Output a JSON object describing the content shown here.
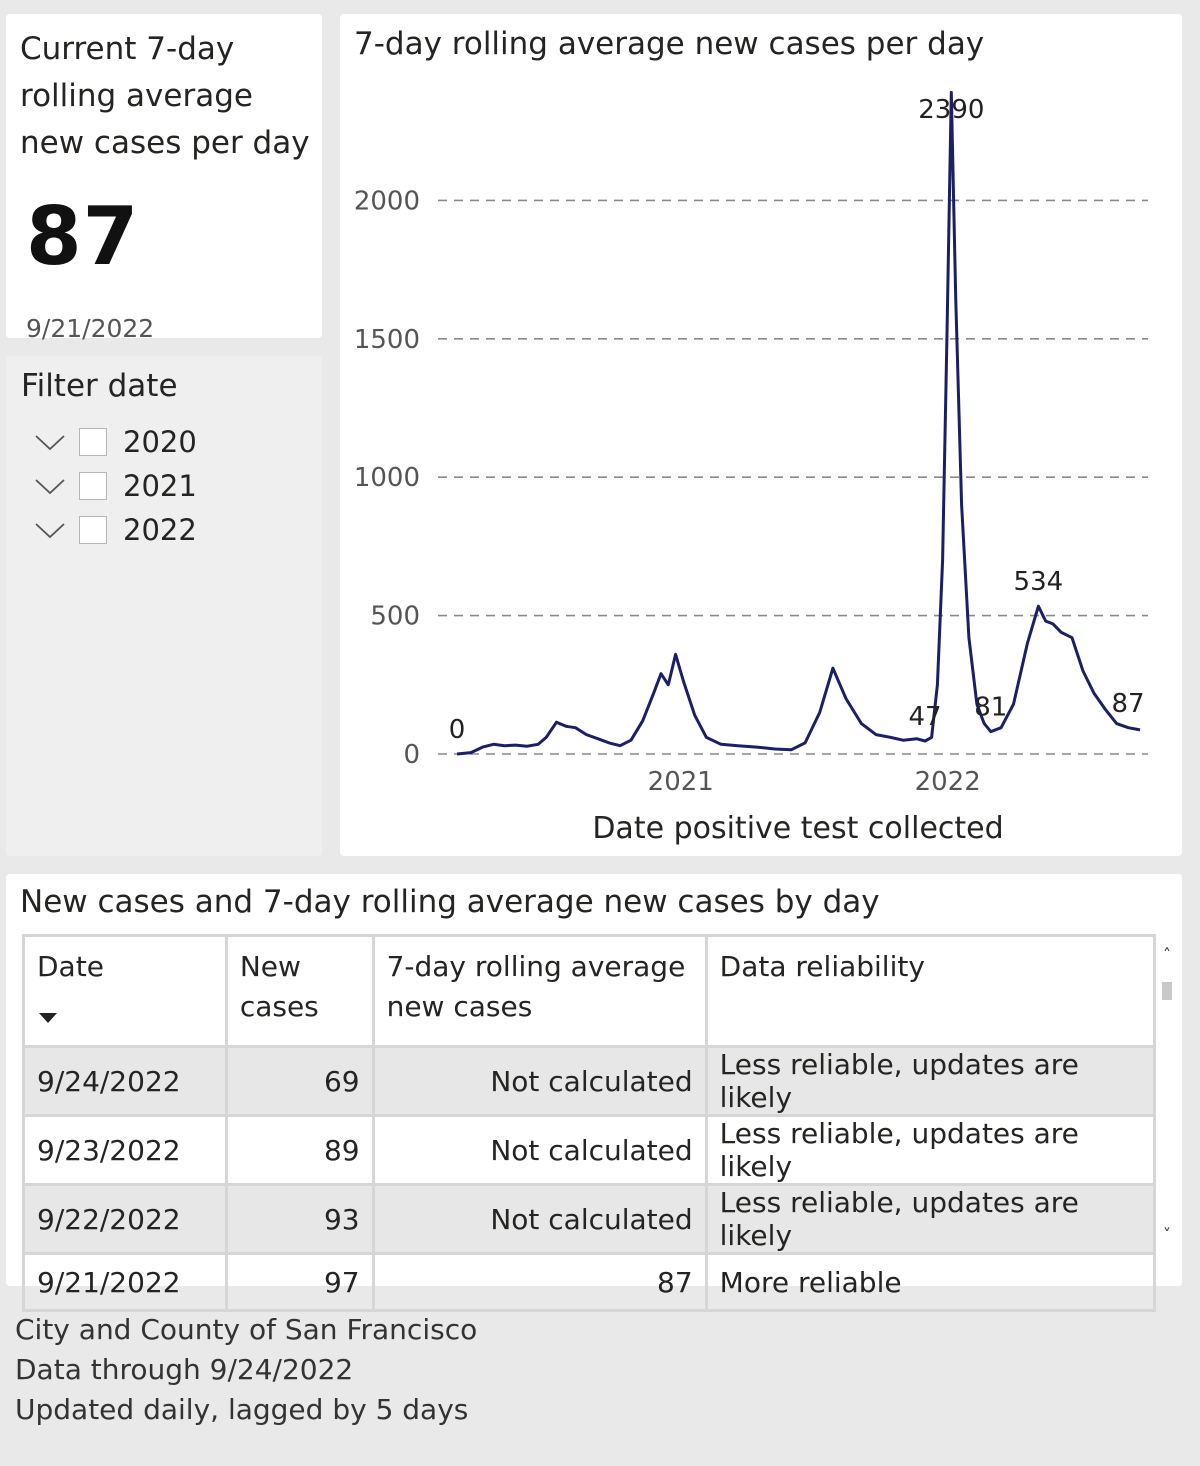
{
  "kpi": {
    "title": "Current 7-day rolling average new cases per day",
    "value": "87",
    "date": "9/21/2022"
  },
  "filter": {
    "title": "Filter date",
    "items": [
      {
        "label": "2020",
        "checked": false,
        "icon": "chevron-down-icon"
      },
      {
        "label": "2021",
        "checked": false,
        "icon": "chevron-down-icon"
      },
      {
        "label": "2022",
        "checked": false,
        "icon": "chevron-down-icon"
      }
    ]
  },
  "chart": {
    "title": "7-day rolling average new cases per day"
  },
  "chart_data": {
    "type": "line",
    "title": "7-day rolling average new cases per day",
    "xlabel": "Date positive test collected",
    "ylabel": "",
    "x_ticks": [
      "2021",
      "2022"
    ],
    "y_ticks": [
      0,
      500,
      1000,
      1500,
      2000
    ],
    "ylim": [
      0,
      2400
    ],
    "grid": "horizontal dashed",
    "line_color": "#1a1f66",
    "highlight_color": "#9a9cbc",
    "series": [
      {
        "points": [
          [
            "2020-03-01",
            0
          ],
          [
            "2020-03-20",
            5
          ],
          [
            "2020-04-05",
            25
          ],
          [
            "2020-04-20",
            35
          ],
          [
            "2020-05-05",
            30
          ],
          [
            "2020-05-20",
            32
          ],
          [
            "2020-06-05",
            28
          ],
          [
            "2020-06-20",
            35
          ],
          [
            "2020-07-01",
            60
          ],
          [
            "2020-07-15",
            115
          ],
          [
            "2020-07-28",
            100
          ],
          [
            "2020-08-10",
            95
          ],
          [
            "2020-08-25",
            70
          ],
          [
            "2020-09-10",
            55
          ],
          [
            "2020-09-25",
            40
          ],
          [
            "2020-10-10",
            30
          ],
          [
            "2020-10-25",
            50
          ],
          [
            "2020-11-10",
            120
          ],
          [
            "2020-11-25",
            220
          ],
          [
            "2020-12-05",
            290
          ],
          [
            "2020-12-15",
            250
          ],
          [
            "2020-12-25",
            360
          ],
          [
            "2021-01-05",
            260
          ],
          [
            "2021-01-20",
            140
          ],
          [
            "2021-02-05",
            60
          ],
          [
            "2021-02-25",
            35
          ],
          [
            "2021-03-20",
            30
          ],
          [
            "2021-04-15",
            25
          ],
          [
            "2021-05-10",
            18
          ],
          [
            "2021-06-01",
            15
          ],
          [
            "2021-06-20",
            40
          ],
          [
            "2021-07-10",
            150
          ],
          [
            "2021-07-28",
            310
          ],
          [
            "2021-08-15",
            200
          ],
          [
            "2021-09-05",
            110
          ],
          [
            "2021-09-25",
            70
          ],
          [
            "2021-10-15",
            60
          ],
          [
            "2021-11-01",
            50
          ],
          [
            "2021-11-20",
            55
          ],
          [
            "2021-12-01",
            47
          ],
          [
            "2021-12-10",
            60
          ],
          [
            "2021-12-18",
            250
          ],
          [
            "2021-12-25",
            700
          ],
          [
            "2021-12-31",
            1500
          ],
          [
            "2022-01-06",
            2390
          ],
          [
            "2022-01-12",
            1650
          ],
          [
            "2022-01-20",
            900
          ],
          [
            "2022-01-30",
            420
          ],
          [
            "2022-02-10",
            180
          ],
          [
            "2022-02-20",
            110
          ],
          [
            "2022-03-01",
            81
          ],
          [
            "2022-03-15",
            95
          ],
          [
            "2022-04-01",
            180
          ],
          [
            "2022-04-20",
            400
          ],
          [
            "2022-05-05",
            534
          ],
          [
            "2022-05-15",
            480
          ],
          [
            "2022-05-25",
            470
          ],
          [
            "2022-06-05",
            440
          ],
          [
            "2022-06-20",
            420
          ],
          [
            "2022-07-05",
            300
          ],
          [
            "2022-07-20",
            220
          ],
          [
            "2022-08-05",
            160
          ],
          [
            "2022-08-20",
            110
          ],
          [
            "2022-09-05",
            95
          ],
          [
            "2022-09-21",
            87
          ]
        ]
      }
    ],
    "annotations": [
      {
        "label": "0",
        "date": "2020-03-01",
        "value": 0
      },
      {
        "label": "2390",
        "date": "2022-01-06",
        "value": 2390
      },
      {
        "label": "47",
        "date": "2021-12-01",
        "value": 47
      },
      {
        "label": "81",
        "date": "2022-03-01",
        "value": 81
      },
      {
        "label": "534",
        "date": "2022-05-05",
        "value": 534
      },
      {
        "label": "87",
        "date": "2022-09-21",
        "value": 87
      }
    ]
  },
  "table": {
    "title": "New cases and 7-day rolling average new cases by day",
    "headers": [
      "Date",
      "New cases",
      "7-day rolling average new cases",
      "Data reliability"
    ],
    "rows": [
      [
        "9/24/2022",
        "69",
        "Not calculated",
        "Less reliable, updates are likely"
      ],
      [
        "9/23/2022",
        "89",
        "Not calculated",
        "Less reliable, updates are likely"
      ],
      [
        "9/22/2022",
        "93",
        "Not calculated",
        "Less reliable, updates are likely"
      ],
      [
        "9/21/2022",
        "97",
        "87",
        "More reliable"
      ]
    ],
    "sort_icon": "sort-descending-icon",
    "scroll_up": "˄",
    "scroll_down": "˅"
  },
  "footer": {
    "line1": "City and County of San Francisco",
    "line2": "Data through 9/24/2022",
    "line3": "Updated daily, lagged by 5 days"
  },
  "colors": {
    "background": "#e9e9e9",
    "card": "#ffffff",
    "panel": "#efefef",
    "line": "#1a1f66",
    "row_shade": "#e7e7e7"
  }
}
